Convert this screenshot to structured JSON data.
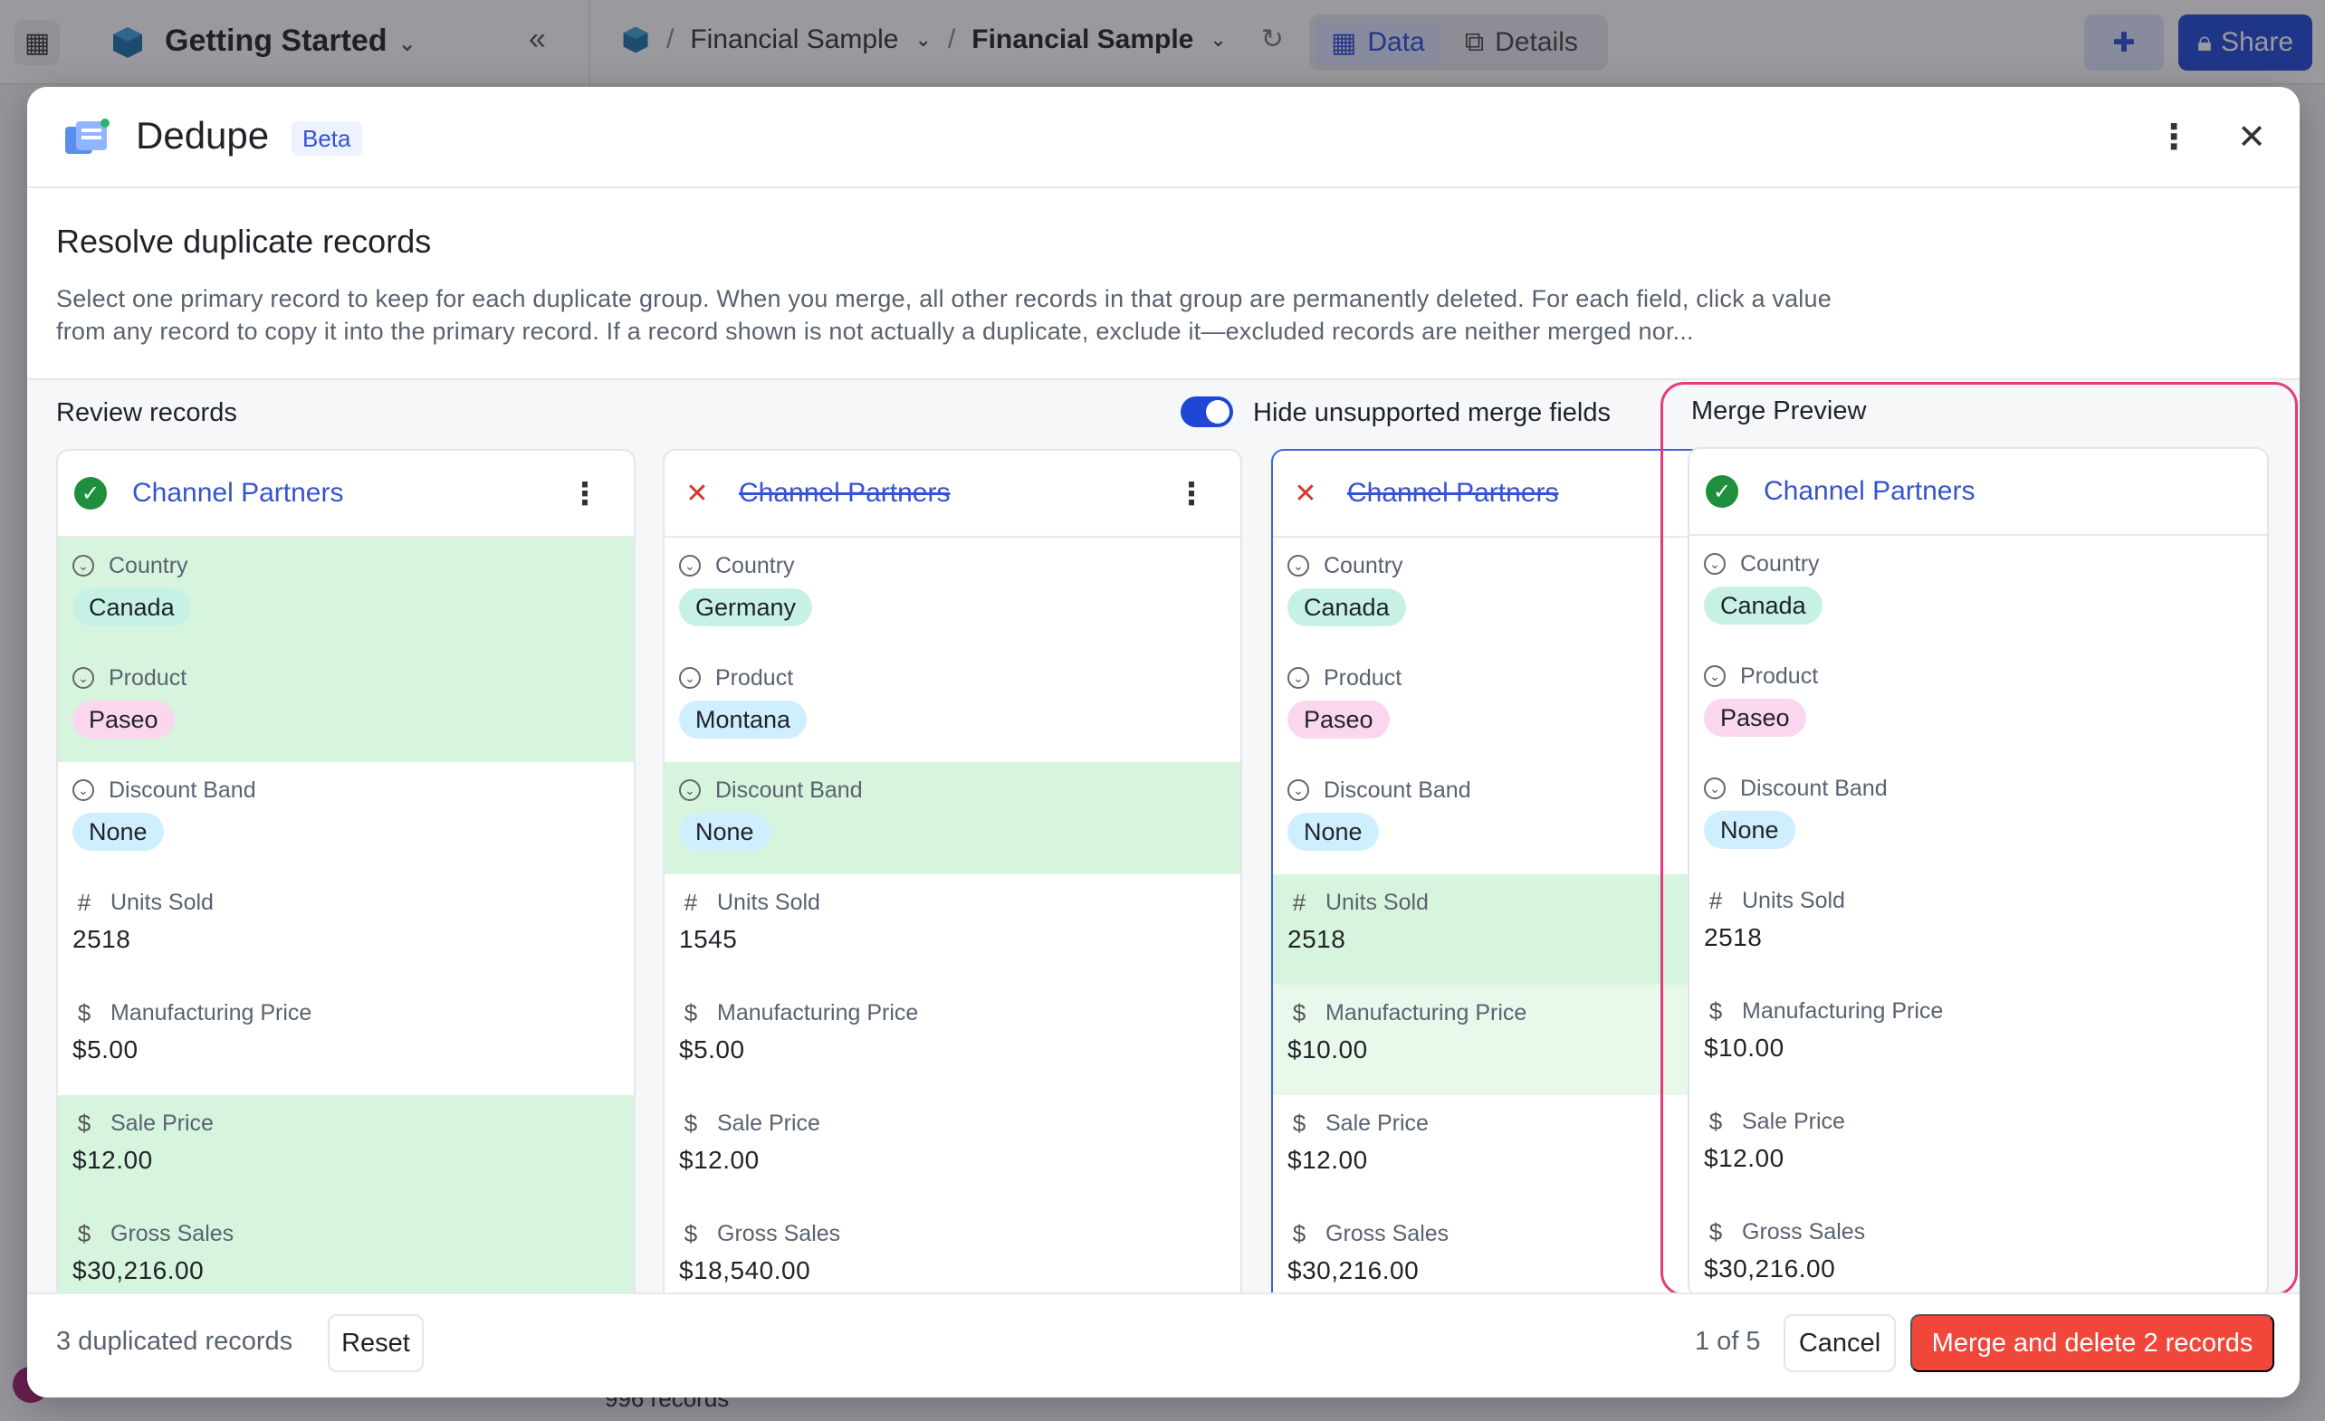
{
  "background": {
    "base_title": "Getting Started",
    "breadcrumb": [
      "Financial Sample",
      "Financial Sample"
    ],
    "tabs": [
      {
        "label": "Data"
      },
      {
        "label": "Details"
      }
    ],
    "share_label": "Share",
    "footer_text": "996 records"
  },
  "modal": {
    "title": "Dedupe",
    "badge": "Beta",
    "heading": "Resolve duplicate records",
    "description": "Select one primary record to keep for each duplicate group. When you merge, all other records in that group are permanently deleted. For each field, click a value from any record to copy it into the primary record. If a record shown is not actually a duplicate, exclude it—excluded records are neither merged nor...",
    "review_title": "Review records",
    "toggle_label": "Hide unsupported merge fields",
    "preview_title": "Merge Preview"
  },
  "labels": {
    "country": "Country",
    "product": "Product",
    "discount_band": "Discount Band",
    "units_sold": "Units Sold",
    "manufacturing_price": "Manufacturing Price",
    "sale_price": "Sale Price",
    "gross_sales": "Gross Sales"
  },
  "records": [
    {
      "name": "Channel Partners",
      "country": "Canada",
      "product": "Paseo",
      "discount_band": "None",
      "units_sold": "2518",
      "manufacturing_price": "$5.00",
      "sale_price": "$12.00",
      "gross_sales": "$30,216.00"
    },
    {
      "name": "Channel Partners",
      "country": "Germany",
      "product": "Montana",
      "discount_band": "None",
      "units_sold": "1545",
      "manufacturing_price": "$5.00",
      "sale_price": "$12.00",
      "gross_sales": "$18,540.00"
    },
    {
      "name": "Channel Partners",
      "country": "Canada",
      "product": "Paseo",
      "discount_band": "None",
      "units_sold": "2518",
      "manufacturing_price": "$10.00",
      "sale_price": "$12.00",
      "gross_sales": "$30,216.00"
    }
  ],
  "preview": {
    "name": "Channel Partners",
    "country": "Canada",
    "product": "Paseo",
    "discount_band": "None",
    "units_sold": "2518",
    "manufacturing_price": "$10.00",
    "sale_price": "$12.00",
    "gross_sales": "$30,216.00"
  },
  "footer": {
    "dup_count": "3 duplicated records",
    "reset_label": "Reset",
    "pager": "1 of 5",
    "cancel_label": "Cancel",
    "merge_label": "Merge and delete 2 records"
  },
  "colors": {
    "accent": "#1f47d6",
    "danger": "#f0473a",
    "preview_border": "#e83a7a",
    "selected_bg": "#d7f5de"
  }
}
